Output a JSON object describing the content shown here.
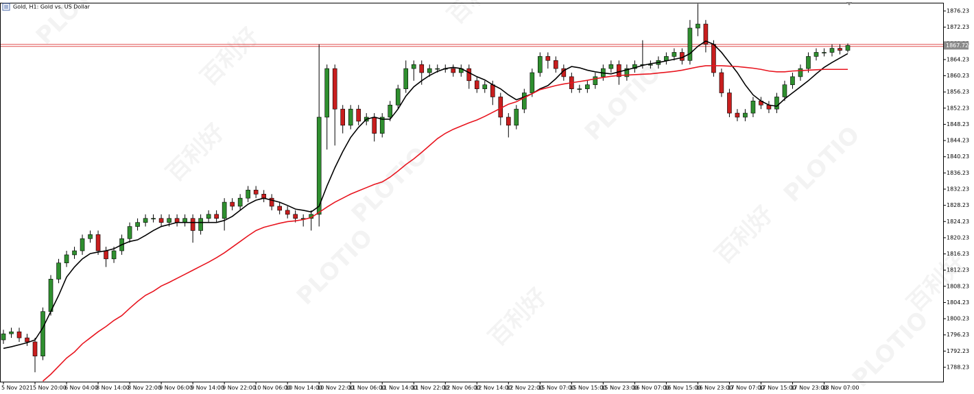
{
  "chart_data": {
    "type": "candlestick",
    "title": "Gold, H1: Gold vs. US Dollar",
    "watermarks": [
      "PLOTIO",
      "百利好"
    ],
    "categories": [
      "5 Nov 2021",
      null,
      null,
      null,
      "5 Nov 20:00",
      null,
      null,
      null,
      "6 Nov 04:00",
      null,
      null,
      null,
      "8 Nov 14:00",
      null,
      null,
      null,
      "8 Nov 22:00",
      null,
      null,
      null,
      "9 Nov 06:00",
      null,
      null,
      null,
      "9 Nov 14:00",
      null,
      null,
      null,
      "9 Nov 22:00",
      null,
      null,
      null,
      "10 Nov 06:00",
      null,
      null,
      null,
      "10 Nov 14:00",
      null,
      null,
      null,
      "10 Nov 22:00",
      null,
      null,
      null,
      "11 Nov 06:00",
      null,
      null,
      null,
      "11 Nov 14:00",
      null,
      null,
      null,
      "11 Nov 22:00",
      null,
      null,
      null,
      "12 Nov 06:00",
      null,
      null,
      null,
      "12 Nov 14:00",
      null,
      null,
      null,
      "12 Nov 22:00",
      null,
      null,
      null,
      "15 Nov 07:00",
      null,
      null,
      null,
      "15 Nov 15:00",
      null,
      null,
      null,
      "15 Nov 23:00",
      null,
      null,
      null,
      "16 Nov 07:00",
      null,
      null,
      null,
      "16 Nov 15:00",
      null,
      null,
      null,
      "16 Nov 23:00",
      null,
      null,
      null,
      "17 Nov 07:00",
      null,
      null,
      null,
      "17 Nov 15:00",
      null,
      null,
      null,
      "17 Nov 23:00",
      null,
      null,
      null,
      "18 Nov 07:00",
      null,
      null,
      null
    ],
    "open": [
      1795,
      1796.5,
      1797,
      1795.5,
      1794.5,
      1791,
      1802,
      1810,
      1814,
      1816,
      1817,
      1820,
      1821,
      1817,
      1815,
      1817,
      1820,
      1823,
      1824,
      1825,
      1825,
      1824,
      1825,
      1824,
      1825,
      1822,
      1825,
      1826,
      1825,
      1829,
      1828,
      1830,
      1832,
      1831,
      1830,
      1828,
      1827,
      1826,
      1825,
      1825,
      1826,
      1850,
      1862,
      1852,
      1848,
      1852,
      1849,
      1850,
      1846,
      1850,
      1853,
      1857,
      1862,
      1863,
      1861,
      1862,
      1862,
      1862,
      1861,
      1862,
      1859,
      1857,
      1858,
      1855,
      1850,
      1848,
      1852,
      1856,
      1861,
      1865,
      1864,
      1862,
      1860,
      1857,
      1857,
      1858,
      1860,
      1862,
      1863,
      1860,
      1862,
      1863,
      1863,
      1863,
      1864,
      1865,
      1866,
      1864,
      1872,
      1873,
      1868,
      1861,
      1856,
      1851,
      1850,
      1851,
      1854,
      1853,
      1852,
      1855,
      1858,
      1860,
      1862,
      1865,
      1866,
      1866,
      1867,
      1866.5
    ],
    "high": [
      1797.5,
      1798,
      1798,
      1796.5,
      1795.5,
      1803,
      1811,
      1815,
      1817,
      1818,
      1821,
      1822,
      1822,
      1818,
      1818,
      1821,
      1824,
      1825,
      1826,
      1826,
      1826,
      1826,
      1826,
      1826,
      1826,
      1826,
      1827,
      1827,
      1830,
      1830,
      1831,
      1833,
      1833,
      1832,
      1831,
      1829,
      1828,
      1827,
      1826,
      1827,
      1868,
      1863,
      1863,
      1853,
      1853,
      1853,
      1851,
      1851,
      1851,
      1854,
      1858,
      1864,
      1864,
      1864,
      1863,
      1863,
      1863,
      1863,
      1863,
      1863,
      1860,
      1859,
      1859,
      1856,
      1851,
      1853,
      1857,
      1862,
      1866,
      1866,
      1865,
      1863,
      1861,
      1858,
      1859,
      1861,
      1863,
      1864,
      1864,
      1863,
      1864,
      1869,
      1864,
      1865,
      1866,
      1867,
      1867,
      1874,
      1878,
      1874,
      1869,
      1862,
      1857,
      1852,
      1852,
      1855,
      1855,
      1854,
      1856,
      1859,
      1861,
      1863,
      1866,
      1867,
      1867,
      1868,
      1868,
      1868.2
    ],
    "low": [
      1794,
      1795.5,
      1794.5,
      1793.5,
      1787,
      1790,
      1801,
      1809,
      1813,
      1815,
      1816,
      1819,
      1816,
      1813,
      1814,
      1816,
      1819,
      1822,
      1823,
      1824,
      1823,
      1823,
      1823,
      1823,
      1819,
      1821,
      1824,
      1824,
      1822,
      1827,
      1827,
      1829,
      1830,
      1829,
      1827,
      1826,
      1825,
      1824,
      1823,
      1822,
      1823,
      1842,
      1843,
      1846,
      1847,
      1848,
      1848,
      1844,
      1845,
      1849,
      1852,
      1856,
      1859,
      1858,
      1860,
      1861,
      1861,
      1860,
      1860,
      1857,
      1856,
      1856,
      1853,
      1848,
      1845,
      1847,
      1851,
      1855,
      1860,
      1862,
      1861,
      1859,
      1856,
      1856,
      1856,
      1857,
      1859,
      1861,
      1858,
      1859,
      1861,
      1862,
      1862,
      1862,
      1863,
      1864,
      1863,
      1863,
      1870,
      1866,
      1860,
      1855,
      1850,
      1849,
      1849,
      1850,
      1852,
      1851,
      1851,
      1854,
      1857,
      1859,
      1861,
      1864,
      1865,
      1865,
      1865.5,
      1866
    ],
    "close": [
      1796.5,
      1797,
      1795.5,
      1794.5,
      1791,
      1802,
      1810,
      1814,
      1816,
      1817,
      1820,
      1821,
      1817,
      1815,
      1817,
      1820,
      1823,
      1824,
      1825,
      1825,
      1824,
      1825,
      1824,
      1825,
      1822,
      1825,
      1826,
      1825,
      1829,
      1828,
      1830,
      1832,
      1831,
      1830,
      1828,
      1827,
      1826,
      1825,
      1825,
      1826,
      1850,
      1862,
      1852,
      1848,
      1852,
      1849,
      1850,
      1846,
      1850,
      1853,
      1857,
      1862,
      1863,
      1861,
      1862,
      1862,
      1862,
      1861,
      1862,
      1859,
      1857,
      1858,
      1855,
      1850,
      1848,
      1852,
      1856,
      1861,
      1865,
      1864,
      1862,
      1860,
      1857,
      1857,
      1858,
      1860,
      1862,
      1863,
      1860,
      1862,
      1863,
      1863,
      1863,
      1864,
      1865,
      1866,
      1864,
      1872,
      1873,
      1868,
      1861,
      1856,
      1851,
      1850,
      1851,
      1854,
      1853,
      1852,
      1855,
      1858,
      1860,
      1862,
      1865,
      1866,
      1866,
      1867,
      1866.5,
      1867.7
    ],
    "up_color": "#2f8f2f",
    "down_color": "#c81e1e",
    "series": [
      {
        "color": "#000000",
        "values": [
          1792.9,
          1793.3,
          1793.8,
          1794.3,
          1795,
          1798,
          1802,
          1806,
          1810.5,
          1813,
          1815,
          1816.3,
          1816.7,
          1817,
          1817.5,
          1818.5,
          1819.3,
          1819.7,
          1820.8,
          1822,
          1823,
          1823.5,
          1824,
          1824,
          1824,
          1824,
          1824,
          1824,
          1824.5,
          1825.5,
          1827,
          1828.5,
          1829.5,
          1830,
          1829.5,
          1829,
          1828.2,
          1827.3,
          1827,
          1826.6,
          1828,
          1833,
          1837.5,
          1841.5,
          1845,
          1847.5,
          1849.5,
          1850,
          1849.5,
          1849.5,
          1852,
          1855.2,
          1857.5,
          1859,
          1860.3,
          1861.3,
          1862,
          1862.3,
          1862,
          1861,
          1860,
          1859.2,
          1858,
          1857,
          1855.5,
          1854.3,
          1855,
          1855.8,
          1857,
          1857.8,
          1859.5,
          1861.5,
          1862.5,
          1862.2,
          1861.6,
          1861.2,
          1860.9,
          1860.7,
          1861.2,
          1861.7,
          1862.2,
          1862.8,
          1863.2,
          1863.5,
          1863.9,
          1864.3,
          1864.7,
          1865.7,
          1867.5,
          1868.8,
          1868,
          1866,
          1863.5,
          1861,
          1858,
          1855.5,
          1854,
          1853,
          1852.7,
          1854.5,
          1856,
          1857.5,
          1859,
          1860.7,
          1862.3,
          1863.5,
          1864.6,
          1865.7
        ]
      },
      {
        "color": "#e8141e",
        "values": [
          null,
          null,
          null,
          null,
          null,
          1784.8,
          1786.5,
          1788.5,
          1790.5,
          1792,
          1794,
          1795.5,
          1797,
          1798.3,
          1799.8,
          1801,
          1802.8,
          1804.5,
          1806,
          1807,
          1808.3,
          1809.2,
          1810.2,
          1811.2,
          1812.2,
          1813.2,
          1814.2,
          1815.3,
          1816.5,
          1817.9,
          1819.3,
          1820.7,
          1822,
          1822.8,
          1823.3,
          1823.8,
          1824.2,
          1824.4,
          1824.7,
          1825.2,
          1826.5,
          1827.8,
          1829,
          1830,
          1831,
          1831.8,
          1832.6,
          1833.4,
          1834,
          1835.2,
          1836.7,
          1838.3,
          1839.7,
          1841.3,
          1843,
          1844.7,
          1846,
          1847,
          1847.8,
          1848.6,
          1849.3,
          1850.2,
          1851.2,
          1852.2,
          1853.2,
          1853.8,
          1854.8,
          1855.8,
          1856.8,
          1857.3,
          1857.8,
          1858.2,
          1858.5,
          1858.8,
          1859.1,
          1859.5,
          1859.8,
          1860.1,
          1860.3,
          1860.4,
          1860.5,
          1860.6,
          1860.7,
          1860.9,
          1861.1,
          1861.3,
          1861.6,
          1862,
          1862.4,
          1862.7,
          1862.7,
          1862.7,
          1862.6,
          1862.5,
          1862.3,
          1862.1,
          1861.8,
          1861.4,
          1861.2,
          1861.2,
          1861.4,
          1861.5,
          1861.6,
          1861.7,
          1861.8,
          1861.8,
          1861.8,
          1861.8
        ]
      }
    ],
    "price_line": {
      "value": 1867.72,
      "color": "#e05050"
    },
    "ylim": [
      1784.68,
      1878.09
    ],
    "yticks": [
      1788.23,
      1792.23,
      1796.23,
      1800.23,
      1804.23,
      1808.23,
      1812.23,
      1816.23,
      1820.23,
      1824.23,
      1828.23,
      1832.23,
      1836.23,
      1840.23,
      1844.23,
      1848.23,
      1852.23,
      1856.23,
      1860.23,
      1864.23,
      1868.23,
      1872.23,
      1876.23
    ]
  }
}
